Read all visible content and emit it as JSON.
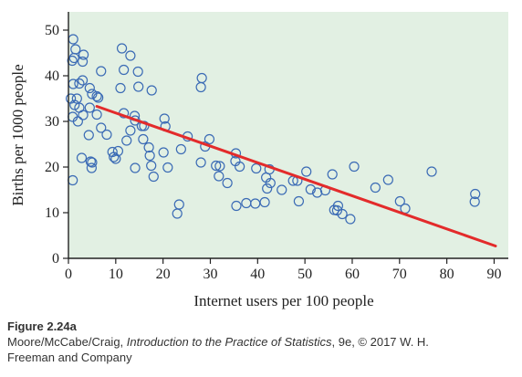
{
  "chart_data": {
    "type": "scatter",
    "title": "",
    "xlabel": "Internet users per 100 people",
    "ylabel": "Births per 1000 people",
    "xlim": [
      0,
      93
    ],
    "ylim": [
      0,
      54
    ],
    "xticks": [
      0,
      10,
      20,
      30,
      40,
      50,
      60,
      70,
      80,
      90
    ],
    "yticks": [
      0,
      10,
      20,
      30,
      40,
      50
    ],
    "xtick_labels": [
      "0",
      "10",
      "20",
      "30",
      "40",
      "50",
      "60",
      "70",
      "80",
      "90"
    ],
    "ytick_labels": [
      "0",
      "10",
      "20",
      "30",
      "40",
      "50"
    ],
    "grid": false,
    "colors": {
      "background": "#e2f0e3",
      "point_stroke": "#3b6bb5",
      "regression_line": "#e32b2b",
      "axis": "#222222"
    },
    "points": [
      [
        1.0,
        48.0
      ],
      [
        1.5,
        45.8
      ],
      [
        3.2,
        44.6
      ],
      [
        1.2,
        43.9
      ],
      [
        3.0,
        43.1
      ],
      [
        0.8,
        43.3
      ],
      [
        6.9,
        41.0
      ],
      [
        3.0,
        39.0
      ],
      [
        2.3,
        38.3
      ],
      [
        1.0,
        38.2
      ],
      [
        4.5,
        37.3
      ],
      [
        0.5,
        35.0
      ],
      [
        1.8,
        35.0
      ],
      [
        5.0,
        36.0
      ],
      [
        6.0,
        35.5
      ],
      [
        6.3,
        35.2
      ],
      [
        1.3,
        33.6
      ],
      [
        4.5,
        33.0
      ],
      [
        2.3,
        33.0
      ],
      [
        3.1,
        31.4
      ],
      [
        0.9,
        31.0
      ],
      [
        6.0,
        31.5
      ],
      [
        2.0,
        30.0
      ],
      [
        6.9,
        28.6
      ],
      [
        4.3,
        27.0
      ],
      [
        8.1,
        27.1
      ],
      [
        0.9,
        17.1
      ],
      [
        2.8,
        22.0
      ],
      [
        9.6,
        22.2
      ],
      [
        10.0,
        21.8
      ],
      [
        10.5,
        23.5
      ],
      [
        9.3,
        23.3
      ],
      [
        5.0,
        21.0
      ],
      [
        4.7,
        21.2
      ],
      [
        4.9,
        19.8
      ],
      [
        11.3,
        46.0
      ],
      [
        13.1,
        44.4
      ],
      [
        11.7,
        41.3
      ],
      [
        14.7,
        40.9
      ],
      [
        14.8,
        37.6
      ],
      [
        11.0,
        37.3
      ],
      [
        17.6,
        36.8
      ],
      [
        11.7,
        31.8
      ],
      [
        14.0,
        31.2
      ],
      [
        14.1,
        30.2
      ],
      [
        15.5,
        29.0
      ],
      [
        16.0,
        29.0
      ],
      [
        13.1,
        28.0
      ],
      [
        15.8,
        26.1
      ],
      [
        12.3,
        25.8
      ],
      [
        17.0,
        24.3
      ],
      [
        17.2,
        22.5
      ],
      [
        17.5,
        20.3
      ],
      [
        14.1,
        19.8
      ],
      [
        18.0,
        17.9
      ],
      [
        20.3,
        30.6
      ],
      [
        20.5,
        28.9
      ],
      [
        20.1,
        23.2
      ],
      [
        21.0,
        19.9
      ],
      [
        25.2,
        26.7
      ],
      [
        23.8,
        23.9
      ],
      [
        23.4,
        11.8
      ],
      [
        23.0,
        9.8
      ],
      [
        28.2,
        39.5
      ],
      [
        28.0,
        37.5
      ],
      [
        29.8,
        26.1
      ],
      [
        28.9,
        24.5
      ],
      [
        28.0,
        21.0
      ],
      [
        31.2,
        20.3
      ],
      [
        31.8,
        18.0
      ],
      [
        32.0,
        20.2
      ],
      [
        33.6,
        16.5
      ],
      [
        35.4,
        23.0
      ],
      [
        35.3,
        21.3
      ],
      [
        36.2,
        20.1
      ],
      [
        35.5,
        11.5
      ],
      [
        37.6,
        12.1
      ],
      [
        39.5,
        12.0
      ],
      [
        39.7,
        19.7
      ],
      [
        41.8,
        17.7
      ],
      [
        42.0,
        15.3
      ],
      [
        42.5,
        19.5
      ],
      [
        42.7,
        16.5
      ],
      [
        41.5,
        12.3
      ],
      [
        45.1,
        15.0
      ],
      [
        47.5,
        17.0
      ],
      [
        48.4,
        17.0
      ],
      [
        48.7,
        12.5
      ],
      [
        50.3,
        19.0
      ],
      [
        51.2,
        15.1
      ],
      [
        52.6,
        14.4
      ],
      [
        54.3,
        14.9
      ],
      [
        55.8,
        18.4
      ],
      [
        56.2,
        10.6
      ],
      [
        57.0,
        11.5
      ],
      [
        56.8,
        10.5
      ],
      [
        57.9,
        9.7
      ],
      [
        59.6,
        8.6
      ],
      [
        60.4,
        20.1
      ],
      [
        64.9,
        15.5
      ],
      [
        67.6,
        17.2
      ],
      [
        70.1,
        12.5
      ],
      [
        71.2,
        10.9
      ],
      [
        76.8,
        19.0
      ],
      [
        86.0,
        14.1
      ],
      [
        85.9,
        12.4
      ]
    ],
    "regression_line": {
      "x": [
        6.0,
        90.3
      ],
      "y": [
        33.3,
        2.7
      ]
    }
  },
  "caption": {
    "figure_label": "Figure 2.24a",
    "credit_authors": "Moore/McCabe/Craig, ",
    "credit_book": "Introduction to the Practice of Statistics",
    "credit_rest": ", 9e, © 2017 W. H.",
    "credit_publisher": "Freeman and Company"
  }
}
